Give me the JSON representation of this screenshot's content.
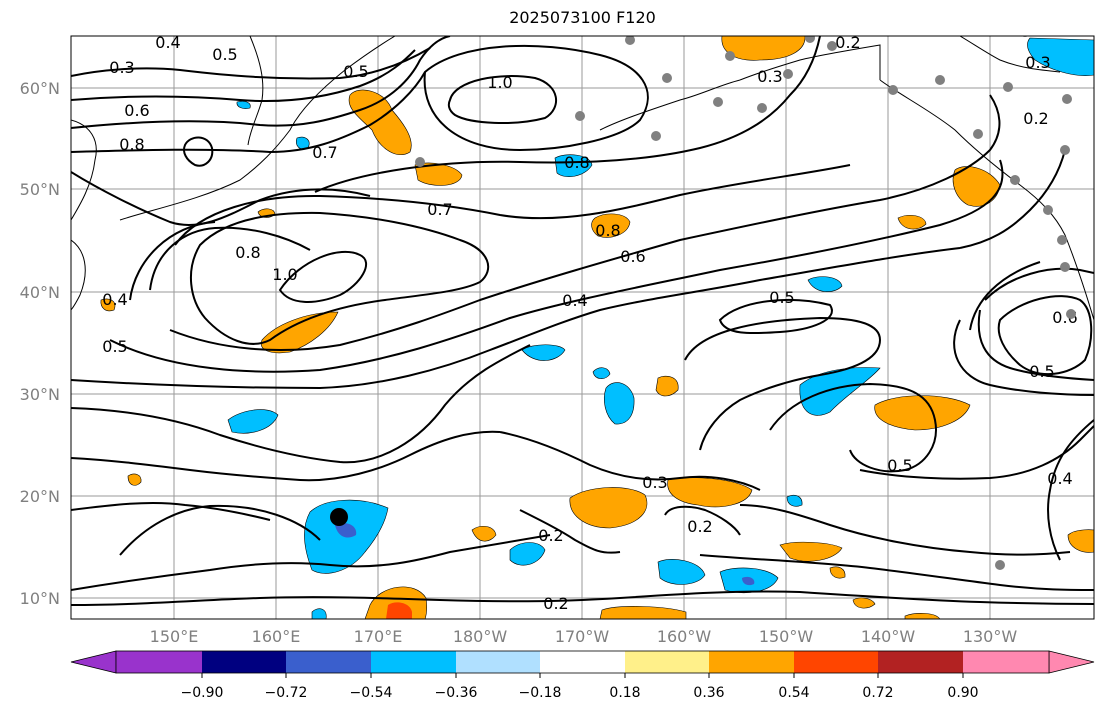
{
  "title": "2025073100 F120",
  "map": {
    "lat_labels": [
      "60°N",
      "50°N",
      "40°N",
      "30°N",
      "20°N",
      "10°N"
    ],
    "lon_labels": [
      "150°E",
      "160°E",
      "170°E",
      "180°W",
      "170°W",
      "160°W",
      "150°W",
      "140°W",
      "130°W"
    ]
  },
  "contour_labels": [
    "0.3",
    "0.4",
    "0.5",
    "0.5",
    "0.6",
    "0.8",
    "1.0",
    "0.7",
    "0.8",
    "0.3",
    "0.2",
    "0.3",
    "0.2",
    "0.7",
    "0.8",
    "0.8",
    "1.0",
    "0.4",
    "0.5",
    "0.6",
    "0.4",
    "0.5",
    "0.6",
    "0.5",
    "0.5",
    "0.3",
    "0.2",
    "0.2",
    "0.2",
    "0.4"
  ],
  "colorbar": {
    "colors": [
      "#9933cc",
      "#000080",
      "#3a5fcd",
      "#00bfff",
      "#b0e0ff",
      "#ffffff",
      "#fff08a",
      "#ffa500",
      "#ff4500",
      "#b22222",
      "#ff88b0"
    ],
    "tick_labels": [
      "−0.90",
      "−0.72",
      "−0.54",
      "−0.36",
      "−0.18",
      "0.18",
      "0.36",
      "0.54",
      "0.72",
      "0.90"
    ]
  },
  "markers": {
    "storm_dot_color": "#000000",
    "station_dot_color": "#808080"
  }
}
